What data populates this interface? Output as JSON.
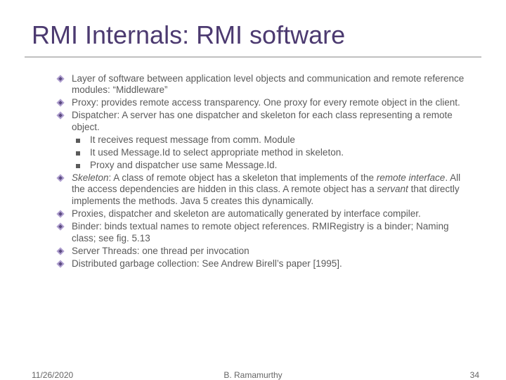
{
  "title": "RMI Internals: RMI software",
  "title_color": "#4c3a70",
  "title_fontsize": 36,
  "body_color": "#5a5a5a",
  "body_fontsize": 13.5,
  "underline_color": "#c0c0c0",
  "bullet_diamond_colors": {
    "outer": "#b0a0d0",
    "inner": "#5a4a80"
  },
  "square_bullet_color": "#5a5a5a",
  "background_color": "#ffffff",
  "items": [
    {
      "level": 1,
      "text": "Layer of software between application level objects and communication and remote reference modules: “Middleware”"
    },
    {
      "level": 1,
      "text": "Proxy: provides remote access transparency. One proxy for every remote object in the client."
    },
    {
      "level": 1,
      "text": "Dispatcher: A server has one dispatcher and skeleton for each class representing a remote object."
    },
    {
      "level": 2,
      "text": "It receives request message from comm. Module"
    },
    {
      "level": 2,
      "text": "It used Message.Id to select appropriate method in skeleton."
    },
    {
      "level": 2,
      "text": "Proxy and dispatcher use same Message.Id."
    },
    {
      "level": 1,
      "html": "<span class=\"italic\">Skeleton</span>: A class of remote object has a skeleton that implements of the <span class=\"italic\">remote interface</span>. All the access dependencies are hidden in this class. A remote object has a <span class=\"italic\">servant</span> that directly implements the methods. Java 5 creates this dynamically."
    },
    {
      "level": 1,
      "text": "Proxies, dispatcher and skeleton are automatically generated by interface compiler."
    },
    {
      "level": 1,
      "text": "Binder: binds textual names to remote object references. RMIRegistry is a binder; Naming class; see fig. 5.13"
    },
    {
      "level": 1,
      "text": "Server Threads: one thread per invocation"
    },
    {
      "level": 1,
      "text": "Distributed garbage collection: See Andrew Birell’s paper [1995]."
    }
  ],
  "footer": {
    "date": "11/26/2020",
    "author": "B. Ramamurthy",
    "page": "34"
  }
}
